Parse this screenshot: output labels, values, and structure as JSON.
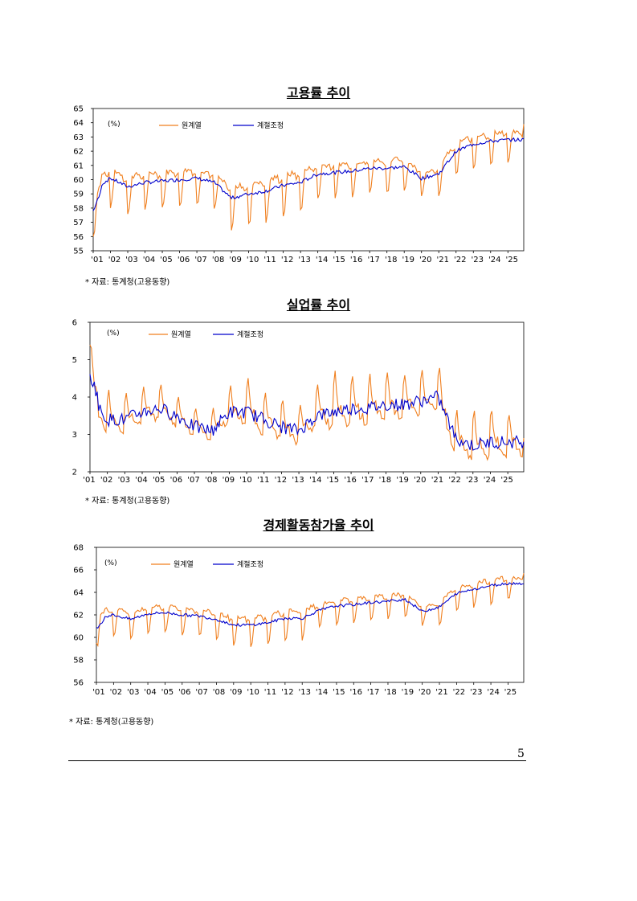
{
  "colors": {
    "original": "#f07f1e",
    "adjusted": "#0000cc"
  },
  "page_number": "5",
  "chart_data": [
    {
      "type": "line",
      "title": "고용률 추이",
      "unit": "(%)",
      "x_ticks": [
        "'01",
        "'02",
        "'03",
        "'04",
        "'05",
        "'06",
        "'07",
        "'08",
        "'09",
        "'10",
        "'11",
        "'12",
        "'13",
        "'14",
        "'15",
        "'16",
        "'17",
        "'18",
        "'19",
        "'20",
        "'21",
        "'22",
        "'23",
        "'24",
        "'25"
      ],
      "ylim": [
        55,
        65
      ],
      "y_ticks": [
        55,
        56,
        57,
        58,
        59,
        60,
        61,
        62,
        63,
        64,
        65
      ],
      "y_tick_labels": [
        "55",
        "56",
        "57",
        "58",
        "59",
        "60",
        "61",
        "62",
        "63",
        "64",
        "65"
      ],
      "source": "* 자료: 통계청(고용동향)",
      "series": [
        {
          "name": "원계열",
          "key": "original",
          "seasonal_amplitude": [
            1.4,
            1.5,
            1.5,
            1.4,
            1.4,
            1.4,
            1.4,
            1.4,
            1.6,
            1.7,
            1.6,
            1.6,
            1.5,
            1.3,
            1.3,
            1.3,
            1.3,
            1.3,
            1.2,
            0.9,
            1.3,
            1.3,
            1.3,
            1.3,
            1.2
          ],
          "start": 56.0,
          "end": 63.9
        },
        {
          "name": "계절조정",
          "key": "adjusted",
          "values": [
            59.3,
            60.1,
            59.5,
            59.8,
            59.9,
            60.0,
            60.1,
            59.8,
            58.7,
            59.0,
            59.2,
            59.6,
            59.8,
            60.4,
            60.5,
            60.6,
            60.8,
            60.8,
            60.9,
            60.1,
            60.4,
            62.0,
            62.5,
            62.7,
            62.8
          ],
          "start": 57.8,
          "end": 62.8
        }
      ],
      "dips": []
    },
    {
      "type": "line",
      "title": "실업률 추이",
      "unit": "(%)",
      "x_ticks": [
        "'01",
        "'02",
        "'03",
        "'04",
        "'05",
        "'06",
        "'07",
        "'08",
        "'09",
        "'10",
        "'11",
        "'12",
        "'13",
        "'14",
        "'15",
        "'16",
        "'17",
        "'18",
        "'19",
        "'20",
        "'21",
        "'22",
        "'23",
        "'24",
        "'25"
      ],
      "ylim": [
        2,
        6
      ],
      "y_ticks": [
        2,
        3,
        4,
        5,
        6
      ],
      "y_tick_labels": [
        "2",
        "3",
        "4",
        "5",
        "6"
      ],
      "source": "* 자료: 통계청(고용동향)",
      "series": [
        {
          "name": "원계열",
          "key": "original",
          "seasonal_amplitude": [
            0.6,
            0.6,
            0.5,
            0.5,
            0.5,
            0.4,
            0.4,
            0.4,
            0.5,
            0.7,
            0.6,
            0.6,
            0.5,
            0.7,
            0.8,
            0.7,
            0.7,
            0.7,
            0.6,
            0.6,
            0.7,
            0.6,
            0.7,
            0.7,
            0.6
          ],
          "start": 5.4,
          "end": 2.9
        },
        {
          "name": "계절조정",
          "key": "adjusted",
          "values": [
            4.0,
            3.4,
            3.4,
            3.6,
            3.7,
            3.5,
            3.2,
            3.1,
            3.6,
            3.6,
            3.4,
            3.2,
            3.1,
            3.5,
            3.6,
            3.7,
            3.7,
            3.8,
            3.8,
            3.9,
            4.0,
            2.9,
            2.7,
            2.8,
            2.8
          ],
          "start": 4.6,
          "end": 2.7
        },
        {
          "name": "",
          "key": "spikes",
          "values": []
        }
      ],
      "dips": []
    },
    {
      "type": "line",
      "title": "경제활동참가율 추이",
      "unit": "(%)",
      "x_ticks": [
        "'01",
        "'02",
        "'03",
        "'04",
        "'05",
        "'06",
        "'07",
        "'08",
        "'09",
        "'10",
        "'11",
        "'12",
        "'13",
        "'14",
        "'15",
        "'16",
        "'17",
        "'18",
        "'19",
        "'20",
        "'21",
        "'22",
        "'23",
        "'24",
        "'25"
      ],
      "ylim": [
        56,
        68
      ],
      "y_ticks": [
        56,
        58,
        60,
        62,
        64,
        66,
        68
      ],
      "y_tick_labels": [
        "56",
        "58",
        "60",
        "62",
        "64",
        "66",
        "68"
      ],
      "source": "* 자료: 통계청(고용동향)",
      "series": [
        {
          "name": "원계열",
          "key": "original",
          "seasonal_amplitude": [
            1.4,
            1.4,
            1.3,
            1.3,
            1.3,
            1.3,
            1.3,
            1.3,
            1.4,
            1.5,
            1.5,
            1.5,
            1.4,
            1.2,
            1.2,
            1.2,
            1.2,
            1.2,
            1.1,
            0.9,
            1.2,
            1.2,
            1.2,
            1.2,
            1.1
          ],
          "start": 59.5,
          "end": 65.7
        },
        {
          "name": "계절조정",
          "key": "adjusted",
          "values": [
            61.7,
            62.0,
            61.6,
            62.1,
            62.2,
            62.0,
            61.9,
            61.6,
            61.1,
            61.1,
            61.3,
            61.7,
            61.7,
            62.4,
            62.8,
            62.9,
            63.1,
            63.2,
            63.4,
            62.3,
            62.7,
            63.9,
            64.3,
            64.6,
            64.8
          ],
          "start": 60.8,
          "end": 64.8
        }
      ],
      "dips": []
    }
  ]
}
